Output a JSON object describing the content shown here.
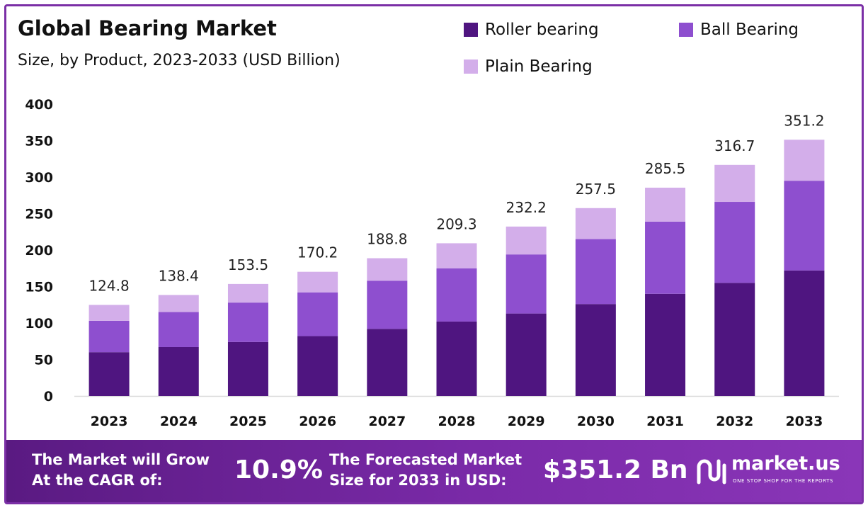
{
  "header": {
    "title": "Global Bearing Market",
    "subtitle": "Size, by Product, 2023-2033 (USD Billion)"
  },
  "colors": {
    "roller": "#4f1580",
    "ball": "#8e4fcf",
    "plain": "#d3aeea",
    "accent": "#7b2fa6"
  },
  "chart_data": {
    "type": "bar",
    "stacked": true,
    "categories": [
      "2023",
      "2024",
      "2025",
      "2026",
      "2027",
      "2028",
      "2029",
      "2030",
      "2031",
      "2032",
      "2033"
    ],
    "series": [
      {
        "name": "Roller bearing",
        "values": [
          60,
          67,
          74,
          82,
          92,
          102,
          113,
          126,
          140,
          155,
          172
        ]
      },
      {
        "name": "Ball Bearing",
        "values": [
          43,
          48,
          54,
          60,
          66,
          73,
          81,
          89,
          99,
          111,
          123
        ]
      },
      {
        "name": "Plain Bearing",
        "values": [
          21.8,
          23.4,
          25.5,
          28.2,
          30.8,
          34.3,
          38.2,
          42.5,
          46.5,
          50.7,
          56.2
        ]
      }
    ],
    "totals": [
      "124.8",
      "138.4",
      "153.5",
      "170.2",
      "188.8",
      "209.3",
      "232.2",
      "257.5",
      "285.5",
      "316.7",
      "351.2"
    ],
    "ylim": [
      0,
      400
    ],
    "yticks": [
      0,
      50,
      100,
      150,
      200,
      250,
      300,
      350,
      400
    ],
    "title": "Global Bearing Market",
    "xlabel": "",
    "ylabel": "",
    "grid": false,
    "legend": "top-right"
  },
  "footer": {
    "cagr_label": [
      "The Market will Grow",
      "At the CAGR of:"
    ],
    "cagr_value": "10.9%",
    "forecast_label": [
      "The Forecasted Market",
      "Size for 2033 in USD:"
    ],
    "forecast_value": "$351.2 Bn",
    "brand_name": "market.us",
    "brand_tagline": "ONE STOP SHOP FOR THE REPORTS",
    "brand_icon": "market-us-logo-icon"
  }
}
